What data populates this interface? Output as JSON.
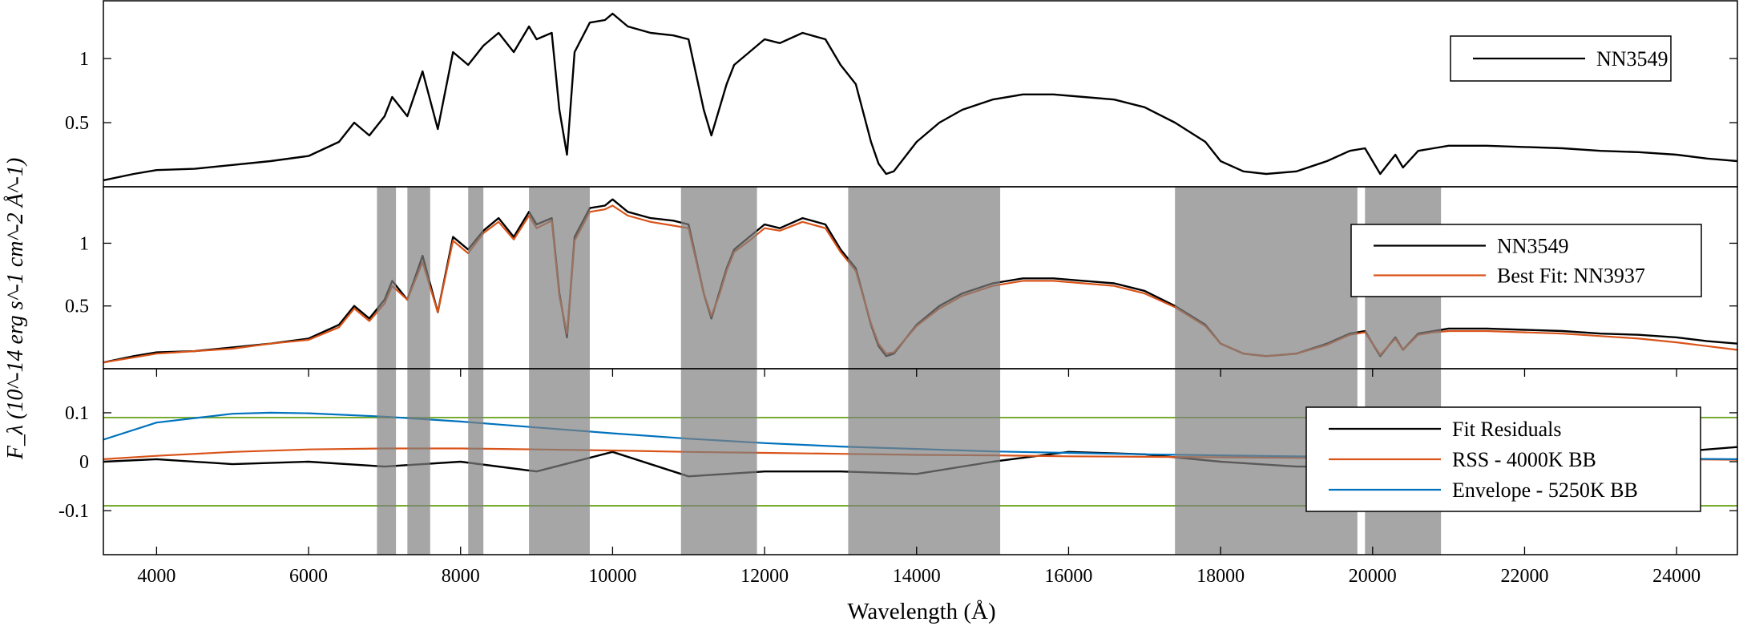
{
  "figure": {
    "ylabel": "F_λ (10^-14 erg s^-1 cm^-2 Å^-1)",
    "xlabel": "Wavelength (Å)"
  },
  "colors": {
    "spectrum": "#000000",
    "model": "#d95319",
    "masked": "#808080",
    "rss_bb": "#d95319",
    "envelope_bb": "#0072bd",
    "bounds": "#77ac30"
  },
  "chart_data": [
    {
      "type": "line",
      "panel": "top",
      "title": "",
      "xlim": [
        3300,
        24800
      ],
      "ylim": [
        0,
        1.45
      ],
      "x_ticks": [],
      "y_ticks": [
        {
          "value": 0.5,
          "label": "0.5"
        },
        {
          "value": 1,
          "label": "1"
        }
      ],
      "legend": {
        "position": "top-right",
        "entries": [
          "NN3549"
        ]
      },
      "series": [
        {
          "name": "NN3549",
          "color": "#000000",
          "x": [
            3300,
            3700,
            4000,
            4500,
            5000,
            5500,
            6000,
            6400,
            6600,
            6800,
            7000,
            7100,
            7300,
            7500,
            7700,
            7900,
            8100,
            8300,
            8500,
            8700,
            8900,
            9000,
            9200,
            9300,
            9400,
            9500,
            9700,
            9900,
            10000,
            10200,
            10500,
            10800,
            11000,
            11200,
            11300,
            11400,
            11500,
            11600,
            11800,
            12000,
            12200,
            12500,
            12800,
            13000,
            13200,
            13400,
            13500,
            13600,
            13700,
            14000,
            14300,
            14600,
            15000,
            15400,
            15800,
            16200,
            16600,
            17000,
            17400,
            17800,
            18000,
            18300,
            18600,
            19000,
            19400,
            19700,
            19900,
            20000,
            20100,
            20300,
            20400,
            20600,
            20800,
            21000,
            21500,
            22000,
            22500,
            23000,
            23500,
            24000,
            24400,
            24800
          ],
          "y": [
            0.05,
            0.1,
            0.13,
            0.14,
            0.17,
            0.2,
            0.24,
            0.35,
            0.5,
            0.4,
            0.55,
            0.7,
            0.55,
            0.9,
            0.45,
            1.05,
            0.95,
            1.1,
            1.2,
            1.05,
            1.25,
            1.15,
            1.2,
            0.6,
            0.25,
            1.05,
            1.28,
            1.3,
            1.35,
            1.25,
            1.2,
            1.18,
            1.15,
            0.6,
            0.4,
            0.6,
            0.8,
            0.95,
            1.05,
            1.15,
            1.12,
            1.2,
            1.15,
            0.95,
            0.8,
            0.35,
            0.18,
            0.1,
            0.12,
            0.35,
            0.5,
            0.6,
            0.68,
            0.72,
            0.72,
            0.7,
            0.68,
            0.62,
            0.5,
            0.35,
            0.2,
            0.12,
            0.1,
            0.12,
            0.2,
            0.28,
            0.3,
            0.2,
            0.1,
            0.25,
            0.15,
            0.28,
            0.3,
            0.32,
            0.32,
            0.31,
            0.3,
            0.28,
            0.27,
            0.25,
            0.22,
            0.2
          ]
        }
      ]
    },
    {
      "type": "line",
      "panel": "middle",
      "title": "",
      "xlim": [
        3300,
        24800
      ],
      "ylim": [
        0,
        1.45
      ],
      "x_ticks": [],
      "y_ticks": [
        {
          "value": 0.5,
          "label": "0.5"
        },
        {
          "value": 1,
          "label": "1"
        }
      ],
      "legend": {
        "position": "top-right",
        "entries": [
          "NN3549",
          "Best Fit: NN3937"
        ]
      },
      "masked_ranges": [
        [
          6900,
          7150
        ],
        [
          7300,
          7600
        ],
        [
          8100,
          8300
        ],
        [
          8900,
          9700
        ],
        [
          10900,
          11900
        ],
        [
          13100,
          15100
        ],
        [
          17400,
          19800
        ],
        [
          19900,
          20900
        ]
      ],
      "series": [
        {
          "name": "NN3549",
          "color": "#000000",
          "x": [
            3300,
            3700,
            4000,
            4500,
            5000,
            5500,
            6000,
            6400,
            6600,
            6800,
            7000,
            7100,
            7300,
            7500,
            7700,
            7900,
            8100,
            8300,
            8500,
            8700,
            8900,
            9000,
            9200,
            9300,
            9400,
            9500,
            9700,
            9900,
            10000,
            10200,
            10500,
            10800,
            11000,
            11200,
            11300,
            11400,
            11500,
            11600,
            11800,
            12000,
            12200,
            12500,
            12800,
            13000,
            13200,
            13400,
            13500,
            13600,
            13700,
            14000,
            14300,
            14600,
            15000,
            15400,
            15800,
            16200,
            16600,
            17000,
            17400,
            17800,
            18000,
            18300,
            18600,
            19000,
            19400,
            19700,
            19900,
            20000,
            20100,
            20300,
            20400,
            20600,
            20800,
            21000,
            21500,
            22000,
            22500,
            23000,
            23500,
            24000,
            24400,
            24800
          ],
          "y": [
            0.05,
            0.1,
            0.13,
            0.14,
            0.17,
            0.2,
            0.24,
            0.35,
            0.5,
            0.4,
            0.55,
            0.7,
            0.55,
            0.9,
            0.45,
            1.05,
            0.95,
            1.1,
            1.2,
            1.05,
            1.25,
            1.15,
            1.2,
            0.6,
            0.25,
            1.05,
            1.28,
            1.3,
            1.35,
            1.25,
            1.2,
            1.18,
            1.15,
            0.6,
            0.4,
            0.6,
            0.8,
            0.95,
            1.05,
            1.15,
            1.12,
            1.2,
            1.15,
            0.95,
            0.8,
            0.35,
            0.18,
            0.1,
            0.12,
            0.35,
            0.5,
            0.6,
            0.68,
            0.72,
            0.72,
            0.7,
            0.68,
            0.62,
            0.5,
            0.35,
            0.2,
            0.12,
            0.1,
            0.12,
            0.2,
            0.28,
            0.3,
            0.2,
            0.1,
            0.25,
            0.15,
            0.28,
            0.3,
            0.32,
            0.32,
            0.31,
            0.3,
            0.28,
            0.27,
            0.25,
            0.22,
            0.2
          ]
        },
        {
          "name": "Best Fit: NN3937",
          "color": "#d95319",
          "x": [
            3300,
            3700,
            4000,
            4500,
            5000,
            5500,
            6000,
            6400,
            6600,
            6800,
            7000,
            7100,
            7300,
            7500,
            7700,
            7900,
            8100,
            8300,
            8500,
            8700,
            8900,
            9000,
            9200,
            9300,
            9400,
            9500,
            9700,
            9900,
            10000,
            10200,
            10500,
            10800,
            11000,
            11200,
            11300,
            11400,
            11500,
            11600,
            11800,
            12000,
            12200,
            12500,
            12800,
            13000,
            13200,
            13400,
            13500,
            13600,
            13700,
            14000,
            14300,
            14600,
            15000,
            15400,
            15800,
            16200,
            16600,
            17000,
            17400,
            17800,
            18000,
            18300,
            18600,
            19000,
            19400,
            19700,
            19900,
            20000,
            20100,
            20300,
            20400,
            20600,
            20800,
            21000,
            21500,
            22000,
            22500,
            23000,
            23500,
            24000,
            24400,
            24800
          ],
          "y": [
            0.05,
            0.09,
            0.12,
            0.14,
            0.16,
            0.2,
            0.23,
            0.33,
            0.48,
            0.38,
            0.52,
            0.66,
            0.55,
            0.85,
            0.45,
            1.02,
            0.92,
            1.08,
            1.17,
            1.03,
            1.22,
            1.12,
            1.18,
            0.58,
            0.28,
            1.02,
            1.25,
            1.27,
            1.3,
            1.22,
            1.17,
            1.14,
            1.12,
            0.6,
            0.42,
            0.58,
            0.78,
            0.93,
            1.02,
            1.12,
            1.1,
            1.17,
            1.12,
            0.93,
            0.78,
            0.36,
            0.2,
            0.12,
            0.13,
            0.34,
            0.48,
            0.58,
            0.66,
            0.7,
            0.7,
            0.68,
            0.66,
            0.6,
            0.49,
            0.34,
            0.2,
            0.12,
            0.1,
            0.12,
            0.19,
            0.27,
            0.29,
            0.2,
            0.11,
            0.24,
            0.15,
            0.27,
            0.29,
            0.3,
            0.3,
            0.29,
            0.28,
            0.26,
            0.24,
            0.21,
            0.18,
            0.15
          ]
        }
      ]
    },
    {
      "type": "line",
      "panel": "bottom",
      "title": "",
      "xlabel": "Wavelength (Å)",
      "xlim": [
        3300,
        24800
      ],
      "ylim": [
        -0.19,
        0.19
      ],
      "x_ticks": [
        4000,
        6000,
        8000,
        10000,
        12000,
        14000,
        16000,
        18000,
        20000,
        22000,
        24000
      ],
      "y_ticks": [
        {
          "value": -0.1,
          "label": "-0.1"
        },
        {
          "value": 0,
          "label": "0"
        },
        {
          "value": 0.1,
          "label": "0.1"
        }
      ],
      "legend": {
        "position": "right",
        "entries": [
          "Fit Residuals",
          "RSS - 4000K BB",
          "Envelope - 5250K BB"
        ]
      },
      "hlines": [
        0.09,
        -0.09
      ],
      "masked_ranges": [
        [
          6900,
          7150
        ],
        [
          7300,
          7600
        ],
        [
          8100,
          8300
        ],
        [
          8900,
          9700
        ],
        [
          10900,
          11900
        ],
        [
          13100,
          15100
        ],
        [
          17400,
          19800
        ],
        [
          19900,
          20900
        ]
      ],
      "series": [
        {
          "name": "Fit Residuals",
          "color": "#000000",
          "x": [
            3300,
            4000,
            5000,
            6000,
            7000,
            8000,
            9000,
            10000,
            11000,
            12000,
            13000,
            14000,
            15000,
            16000,
            17000,
            18000,
            19000,
            20000,
            21000,
            22000,
            23000,
            24000,
            24800
          ],
          "y": [
            0.0,
            0.005,
            -0.005,
            0.0,
            -0.01,
            0.0,
            -0.02,
            0.02,
            -0.03,
            -0.02,
            -0.02,
            -0.025,
            0.0,
            0.02,
            0.015,
            0.0,
            -0.01,
            -0.01,
            0.005,
            0.01,
            0.01,
            0.02,
            0.03
          ]
        },
        {
          "name": "RSS - 4000K BB",
          "color": "#d95319",
          "x": [
            3300,
            4000,
            5000,
            6000,
            7000,
            8000,
            9000,
            10000,
            11000,
            12000,
            13000,
            14000,
            15000,
            16000,
            17000,
            18000,
            19000,
            20000,
            21000,
            22000,
            23000,
            24000,
            24800
          ],
          "y": [
            0.005,
            0.012,
            0.02,
            0.025,
            0.027,
            0.027,
            0.025,
            0.023,
            0.02,
            0.018,
            0.016,
            0.014,
            0.013,
            0.011,
            0.01,
            0.009,
            0.008,
            0.007,
            0.006,
            0.006,
            0.005,
            0.005,
            0.004
          ]
        },
        {
          "name": "Envelope - 5250K BB",
          "color": "#0072bd",
          "x": [
            3300,
            4000,
            5000,
            5500,
            6000,
            7000,
            8000,
            9000,
            10000,
            11000,
            12000,
            13000,
            14000,
            15000,
            16000,
            17000,
            18000,
            19000,
            20000,
            21000,
            22000,
            23000,
            24000,
            24800
          ],
          "y": [
            0.045,
            0.08,
            0.098,
            0.1,
            0.099,
            0.092,
            0.082,
            0.07,
            0.058,
            0.047,
            0.038,
            0.031,
            0.026,
            0.021,
            0.018,
            0.015,
            0.013,
            0.011,
            0.01,
            0.009,
            0.008,
            0.007,
            0.006,
            0.005
          ]
        }
      ]
    }
  ]
}
